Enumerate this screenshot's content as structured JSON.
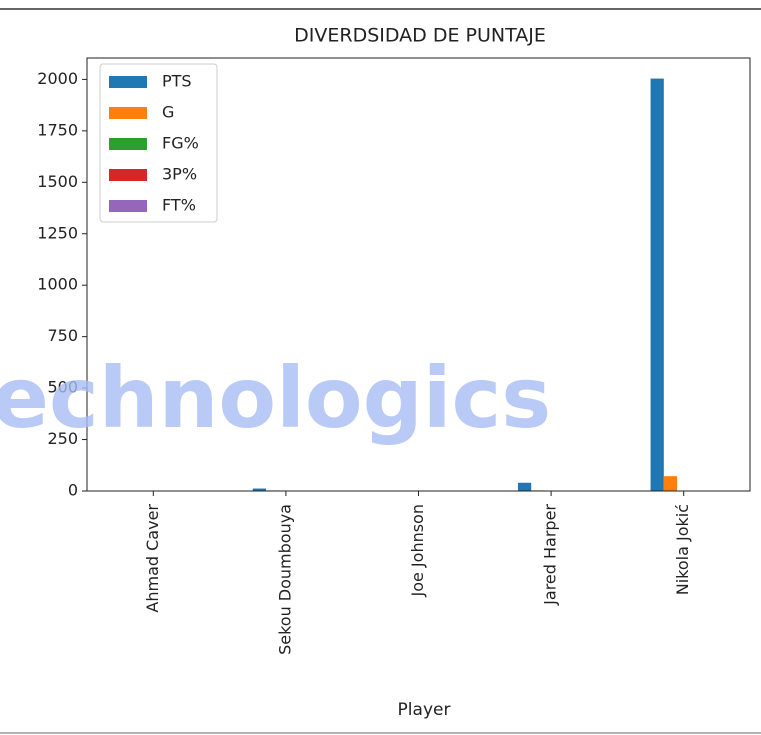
{
  "chart_data": {
    "type": "bar",
    "title": "DIVERDSIDAD DE PUNTAJE",
    "xlabel": "Player",
    "categories": [
      "Ahmad Caver",
      "Sekou Doumbouya",
      "Joe Johnson",
      "Jared Harper",
      "Nikola Jokić"
    ],
    "series": [
      {
        "name": "PTS",
        "color": "#1f77b4",
        "values": [
          0,
          12,
          0,
          40,
          2004
        ]
      },
      {
        "name": "G",
        "color": "#ff7f0e",
        "values": [
          2,
          3,
          1,
          3,
          72
        ]
      },
      {
        "name": "FG%",
        "color": "#2ca02c",
        "values": [
          0,
          0.4,
          0,
          0.3,
          0.58
        ]
      },
      {
        "name": "3P%",
        "color": "#d62728",
        "values": [
          0,
          0.3,
          0,
          0.25,
          0.38
        ]
      },
      {
        "name": "FT%",
        "color": "#9467bd",
        "values": [
          0,
          0.7,
          0,
          0.8,
          0.82
        ]
      }
    ],
    "ylim": [
      0,
      2104
    ],
    "yticks": [
      0,
      250,
      500,
      750,
      1000,
      1250,
      1500,
      1750,
      2000
    ],
    "legend": "upper left",
    "watermark": "echnologics"
  }
}
